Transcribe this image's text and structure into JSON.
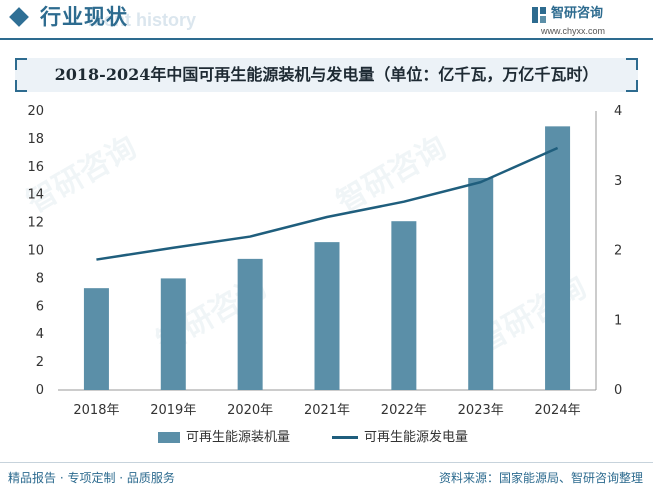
{
  "header": {
    "title": "行业现状",
    "subtitle": "ment history"
  },
  "brand": {
    "name": "智研咨询",
    "url": "www.chyxx.com"
  },
  "watermark": "智研咨询",
  "footer": {
    "left": "精品报告 · 专项定制 · 品质服务",
    "source": "资料来源：国家能源局、智研咨询整理"
  },
  "colors": {
    "accent": "#2d6b8f",
    "bar": "#5b8fa8",
    "line": "#1f5e7d"
  },
  "chart_data": {
    "type": "bar",
    "title": "2018-2024年中国可再生能源装机与发电量（单位：亿千瓦，万亿千瓦时）",
    "categories": [
      "2018年",
      "2019年",
      "2020年",
      "2021年",
      "2022年",
      "2023年",
      "2024年"
    ],
    "series": [
      {
        "name": "可再生能源装机量",
        "type": "bar",
        "axis": "left",
        "values": [
          7.3,
          8.0,
          9.4,
          10.6,
          12.1,
          15.2,
          18.9
        ]
      },
      {
        "name": "可再生能源发电量",
        "type": "line",
        "axis": "right",
        "values": [
          1.87,
          2.04,
          2.2,
          2.48,
          2.7,
          2.98,
          3.47
        ]
      }
    ],
    "y_left": {
      "min": 0,
      "max": 20,
      "ticks": [
        "0",
        "2",
        "4",
        "6",
        "8",
        "10",
        "12",
        "14",
        "16",
        "18",
        "20"
      ]
    },
    "y_right": {
      "min": 0,
      "max": 4,
      "ticks": [
        "0",
        "1",
        "2",
        "3",
        "4"
      ]
    },
    "grid": false,
    "legend": "bottom"
  }
}
